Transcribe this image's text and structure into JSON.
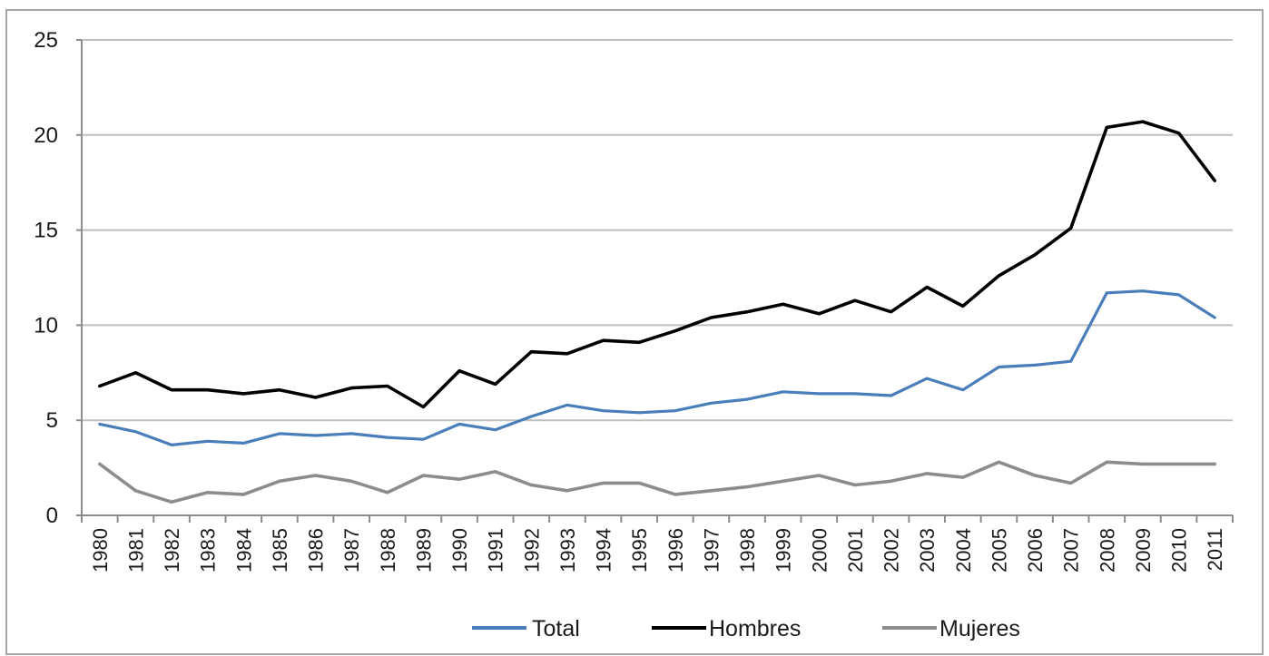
{
  "chart_data": {
    "type": "line",
    "title": "",
    "xlabel": "",
    "ylabel": "",
    "ylim": [
      0,
      25
    ],
    "yticks": [
      "0",
      "5",
      "10",
      "15",
      "20",
      "25"
    ],
    "grid": "horizontal",
    "legend_position": "bottom",
    "x": [
      "1980",
      "1981",
      "1982",
      "1983",
      "1984",
      "1985",
      "1986",
      "1987",
      "1988",
      "1989",
      "1990",
      "1991",
      "1992",
      "1993",
      "1994",
      "1995",
      "1996",
      "1997",
      "1998",
      "1999",
      "2000",
      "2001",
      "2002",
      "2003",
      "2004",
      "2005",
      "2006",
      "2007",
      "2008",
      "2009",
      "2010",
      "2011"
    ],
    "series": [
      {
        "name": "Total",
        "color": "#4a7ebb",
        "values": [
          4.8,
          4.4,
          3.7,
          3.9,
          3.8,
          4.3,
          4.2,
          4.3,
          4.1,
          4.0,
          4.8,
          4.5,
          5.2,
          5.8,
          5.5,
          5.4,
          5.5,
          5.9,
          6.1,
          6.5,
          6.4,
          6.4,
          6.3,
          7.2,
          6.6,
          7.8,
          7.9,
          8.1,
          11.7,
          11.8,
          11.6,
          10.4
        ]
      },
      {
        "name": "Hombres",
        "color": "#000000",
        "values": [
          6.8,
          7.5,
          6.6,
          6.6,
          6.4,
          6.6,
          6.2,
          6.7,
          6.8,
          5.7,
          7.6,
          6.9,
          8.6,
          8.5,
          9.2,
          9.1,
          9.7,
          10.4,
          10.7,
          11.1,
          10.6,
          11.3,
          10.7,
          12.0,
          11.0,
          12.6,
          13.7,
          15.1,
          20.4,
          20.7,
          20.1,
          17.6
        ]
      },
      {
        "name": "Mujeres",
        "color": "#8c8c8c",
        "values": [
          2.7,
          1.3,
          0.7,
          1.2,
          1.1,
          1.8,
          2.1,
          1.8,
          1.2,
          2.1,
          1.9,
          2.3,
          1.6,
          1.3,
          1.7,
          1.7,
          1.1,
          1.3,
          1.5,
          1.8,
          2.1,
          1.6,
          1.8,
          2.2,
          2.0,
          2.8,
          2.1,
          1.7,
          2.8,
          2.7,
          2.7,
          2.7
        ]
      }
    ]
  }
}
